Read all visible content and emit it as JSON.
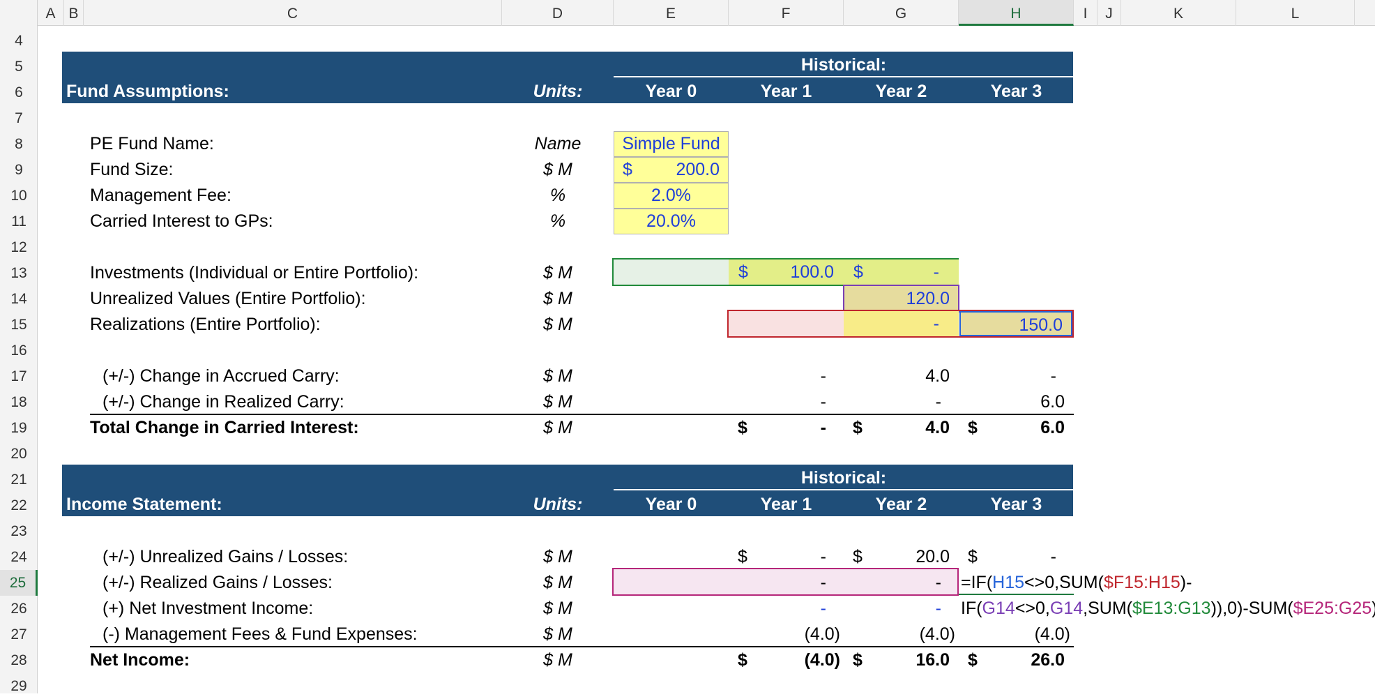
{
  "columns": [
    "A",
    "B",
    "C",
    "D",
    "E",
    "F",
    "G",
    "H",
    "I",
    "J",
    "K",
    "L"
  ],
  "selected_column": "H",
  "rows": [
    "4",
    "5",
    "6",
    "7",
    "8",
    "9",
    "10",
    "11",
    "12",
    "13",
    "14",
    "15",
    "16",
    "17",
    "18",
    "19",
    "20",
    "21",
    "22",
    "23",
    "24",
    "25",
    "26",
    "27",
    "28",
    "29"
  ],
  "selected_row": "25",
  "section1": {
    "title": "Fund Assumptions:",
    "units_header": "Units:",
    "historical": "Historical:",
    "years": [
      "Year 0",
      "Year 1",
      "Year 2",
      "Year 3"
    ]
  },
  "assumptions": {
    "fund_name_label": "PE Fund Name:",
    "fund_name_unit": "Name",
    "fund_name_value": "Simple Fund",
    "fund_size_label": "Fund Size:",
    "fund_size_unit": "$ M",
    "fund_size_currency": "$",
    "fund_size_value": "200.0",
    "mgmt_fee_label": "Management Fee:",
    "mgmt_fee_unit": "%",
    "mgmt_fee_value": "2.0%",
    "carry_label": "Carried Interest to GPs:",
    "carry_unit": "%",
    "carry_value": "20.0%"
  },
  "portfolio": {
    "investments_label": "Investments (Individual or Entire Portfolio):",
    "investments_unit": "$ M",
    "investments_f_cur": "$",
    "investments_f": "100.0",
    "investments_g_cur": "$",
    "investments_g": "-",
    "unrealized_label": "Unrealized Values (Entire Portfolio):",
    "unrealized_unit": "$ M",
    "unrealized_g": "120.0",
    "realizations_label": "Realizations (Entire Portfolio):",
    "realizations_unit": "$ M",
    "realizations_g": "-",
    "realizations_h": "150.0"
  },
  "carry": {
    "accrued_label": "(+/-) Change in Accrued Carry:",
    "accrued_unit": "$ M",
    "accrued_f": "-",
    "accrued_g": "4.0",
    "accrued_h": "-",
    "realized_label": "(+/-) Change in Realized Carry:",
    "realized_unit": "$ M",
    "realized_f": "-",
    "realized_g": "-",
    "realized_h": "6.0",
    "total_label": "Total Change in Carried Interest:",
    "total_unit": "$ M",
    "total_cur": "$",
    "total_f": "-",
    "total_g": "4.0",
    "total_h": "6.0"
  },
  "section2": {
    "title": "Income Statement:",
    "units_header": "Units:",
    "historical": "Historical:",
    "years": [
      "Year 0",
      "Year 1",
      "Year 2",
      "Year 3"
    ]
  },
  "income": {
    "unrealized_label": "(+/-) Unrealized Gains / Losses:",
    "unrealized_unit": "$ M",
    "unrealized_cur": "$",
    "unrealized_f": "-",
    "unrealized_g": "20.0",
    "unrealized_h": "-",
    "realized_label": "(+/-) Realized Gains / Losses:",
    "realized_unit": "$ M",
    "realized_f": "-",
    "realized_g": "-",
    "nii_label": "(+) Net Investment Income:",
    "nii_unit": "$ M",
    "nii_f": "-",
    "nii_g": "-",
    "fees_label": "(-) Management Fees & Fund Expenses:",
    "fees_unit": "$ M",
    "fees_f": "(4.0)",
    "fees_g": "(4.0)",
    "fees_h": "(4.0)",
    "net_label": "Net Income:",
    "net_unit": "$ M",
    "net_cur": "$",
    "net_f": "(4.0)",
    "net_g": "16.0",
    "net_h": "26.0"
  },
  "formula": {
    "l1_a": "=IF(",
    "l1_b": "H15",
    "l1_c": "<>0,SUM(",
    "l1_d": "$F15:H15",
    "l1_e": ")-",
    "l2_a": "IF(",
    "l2_b": "G14",
    "l2_c": "<>0,",
    "l2_d": "G14",
    "l2_e": ",SUM(",
    "l2_f": "$E13:G13",
    "l2_g": ")),0)-SUM(",
    "l2_h": "$E25:G25",
    "l2_i": ")"
  }
}
